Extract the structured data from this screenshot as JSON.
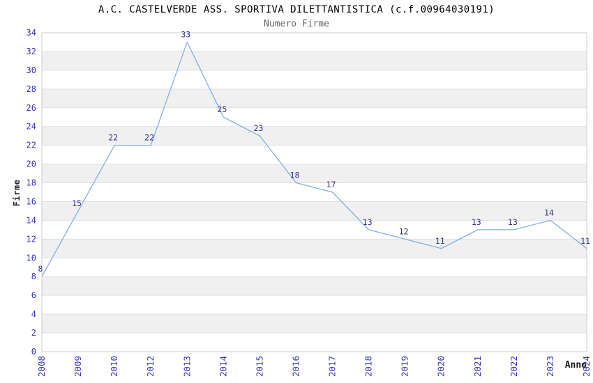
{
  "chart_data": {
    "type": "line",
    "title": "A.C. CASTELVERDE ASS. SPORTIVA DILETTANTISTICA (c.f.00964030191)",
    "subtitle": "Numero Firme",
    "xlabel": "Anno",
    "ylabel": "Firme",
    "categories": [
      "2008",
      "2009",
      "2010",
      "2012",
      "2013",
      "2014",
      "2015",
      "2016",
      "2017",
      "2018",
      "2019",
      "2020",
      "2021",
      "2022",
      "2023",
      "2024"
    ],
    "values": [
      8,
      15,
      22,
      22,
      33,
      25,
      23,
      18,
      17,
      13,
      12,
      11,
      13,
      13,
      14,
      11
    ],
    "ylim": [
      0,
      34
    ],
    "ytick_step": 2,
    "grid": "horizontal-alternating-bands",
    "legend": "none",
    "data_labels_shown": true,
    "colors": {
      "line": "#7eb1e6",
      "tick_labels": "#3333cc",
      "data_labels": "#333399",
      "band_fill": "#f0f0f0",
      "grid_line": "#e0e0e0",
      "plot_border": "#cccccc",
      "title": "#000000",
      "subtitle": "#666666",
      "axis_titles": "#222222"
    }
  }
}
